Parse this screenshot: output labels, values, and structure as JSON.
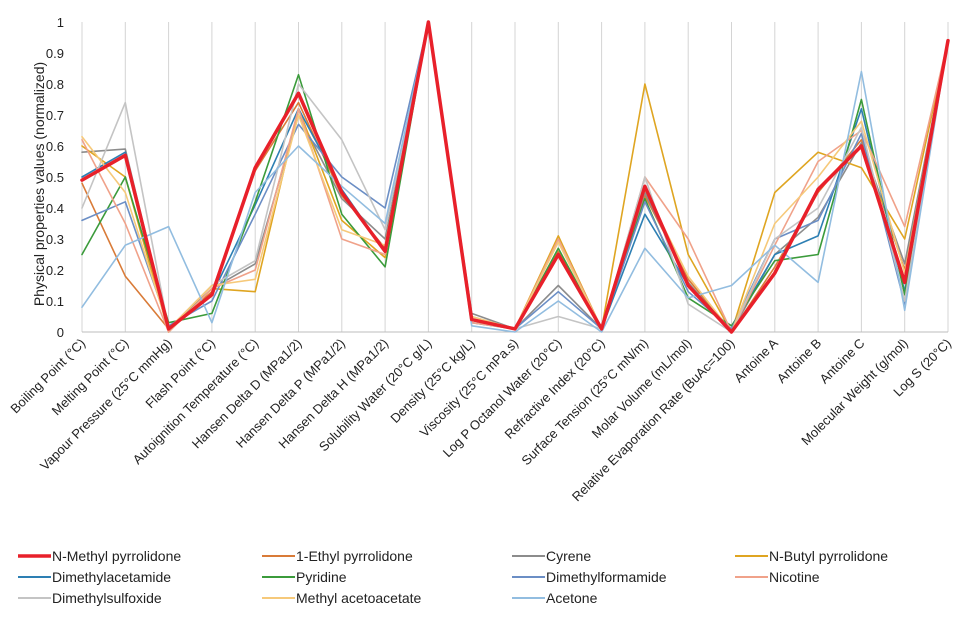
{
  "chart_data": {
    "type": "line",
    "title": "",
    "xlabel": "",
    "ylabel": "Physical properties values (normalized)",
    "ylim": [
      0,
      1
    ],
    "yticks": [
      "0",
      "0.1",
      "0.2",
      "0.3",
      "0.4",
      "0.5",
      "0.6",
      "0.7",
      "0.8",
      "0.9",
      "1"
    ],
    "grid": "vertical lines at each category",
    "legend_position": "bottom",
    "categories": [
      "Boiling Point (°C)",
      "Melting Point (°C)",
      "Vapour Pressure (25°C mmHg)",
      "Flash Point (°C)",
      "Autoignition Temperature (°C)",
      "Hansen Delta D (MPa1/2)",
      "Hansen Delta P (MPa1/2)",
      "Hansen Delta H (MPa1/2)",
      "Solubility Water (20°C g/L)",
      "Density (25°C kg/L)",
      "Viscosity (25°C mPa.s)",
      "Log P Octanol Water (20°C)",
      "Refractive Index (20°C)",
      "Surface Tension (25°C mN/m)",
      "Molar Volume (mL/mol)",
      "Relative Evaporation Rate (BuAc=100)",
      "Antoine A",
      "Antoine B",
      "Antoine C",
      "Molecular Weight (g/mol)",
      "Log S (20°C)"
    ],
    "series": [
      {
        "name": "N-Methyl pyrrolidone",
        "color": "#e8202a",
        "width": 3.5,
        "values": [
          0.49,
          0.57,
          0.01,
          0.12,
          0.53,
          0.77,
          0.45,
          0.26,
          1.0,
          0.04,
          0.01,
          0.25,
          0.01,
          0.47,
          0.15,
          0.0,
          0.19,
          0.46,
          0.6,
          0.16,
          0.94
        ]
      },
      {
        "name": "1-Ethyl pyrrolidone",
        "color": "#d97b38",
        "width": 1.6,
        "values": [
          0.48,
          0.18,
          0.01,
          0.13,
          0.52,
          0.74,
          0.44,
          0.27,
          1.0,
          0.04,
          0.01,
          0.26,
          0.01,
          0.44,
          0.17,
          0.0,
          0.21,
          0.45,
          0.62,
          0.2,
          0.94
        ]
      },
      {
        "name": "Cyrene",
        "color": "#8c8c8c",
        "width": 1.6,
        "values": [
          0.58,
          0.59,
          0.01,
          0.14,
          0.22,
          0.7,
          0.43,
          0.3,
          1.0,
          0.06,
          0.01,
          0.15,
          0.01,
          0.45,
          0.16,
          0.0,
          0.25,
          0.37,
          0.61,
          0.22,
          0.94
        ]
      },
      {
        "name": "N-Butyl pyrrolidone",
        "color": "#dfa521",
        "width": 1.6,
        "values": [
          0.6,
          0.5,
          0.0,
          0.14,
          0.13,
          0.72,
          0.36,
          0.24,
          1.0,
          0.04,
          0.01,
          0.31,
          0.01,
          0.8,
          0.25,
          0.0,
          0.45,
          0.58,
          0.53,
          0.3,
          0.94
        ]
      },
      {
        "name": "Dimethylacetamide",
        "color": "#2d7fb3",
        "width": 1.6,
        "values": [
          0.5,
          0.58,
          0.01,
          0.12,
          0.41,
          0.72,
          0.46,
          0.26,
          1.0,
          0.03,
          0.01,
          0.25,
          0.01,
          0.38,
          0.15,
          0.01,
          0.25,
          0.31,
          0.72,
          0.13,
          0.94
        ]
      },
      {
        "name": "Pyridine",
        "color": "#3b9b3b",
        "width": 1.6,
        "values": [
          0.25,
          0.5,
          0.03,
          0.06,
          0.42,
          0.83,
          0.38,
          0.21,
          1.0,
          0.04,
          0.01,
          0.27,
          0.01,
          0.43,
          0.11,
          0.02,
          0.23,
          0.25,
          0.75,
          0.12,
          0.94
        ]
      },
      {
        "name": "Dimethylformamide",
        "color": "#6b8ec5",
        "width": 1.6,
        "values": [
          0.36,
          0.42,
          0.02,
          0.1,
          0.38,
          0.67,
          0.5,
          0.4,
          1.0,
          0.04,
          0.01,
          0.13,
          0.01,
          0.42,
          0.13,
          0.01,
          0.3,
          0.36,
          0.64,
          0.09,
          0.94
        ]
      },
      {
        "name": "Nicotine",
        "color": "#f0a28a",
        "width": 1.6,
        "values": [
          0.62,
          0.35,
          0.0,
          0.14,
          0.2,
          0.72,
          0.3,
          0.25,
          1.0,
          0.03,
          0.01,
          0.3,
          0.01,
          0.5,
          0.3,
          0.0,
          0.28,
          0.55,
          0.65,
          0.34,
          0.94
        ]
      },
      {
        "name": "Dimethylsulfoxide",
        "color": "#c4c4c4",
        "width": 1.6,
        "values": [
          0.4,
          0.74,
          0.01,
          0.15,
          0.23,
          0.8,
          0.62,
          0.33,
          1.0,
          0.05,
          0.01,
          0.05,
          0.01,
          0.5,
          0.09,
          0.0,
          0.3,
          0.4,
          0.66,
          0.1,
          0.94
        ]
      },
      {
        "name": "Methyl acetoacetate",
        "color": "#f6c97a",
        "width": 1.6,
        "values": [
          0.63,
          0.45,
          0.01,
          0.15,
          0.17,
          0.7,
          0.33,
          0.28,
          1.0,
          0.05,
          0.01,
          0.29,
          0.01,
          0.46,
          0.18,
          0.0,
          0.35,
          0.5,
          0.68,
          0.19,
          0.94
        ]
      },
      {
        "name": "Acetone",
        "color": "#92bde0",
        "width": 1.6,
        "values": [
          0.08,
          0.28,
          0.34,
          0.03,
          0.45,
          0.6,
          0.47,
          0.35,
          1.0,
          0.02,
          0.0,
          0.1,
          0.0,
          0.27,
          0.11,
          0.15,
          0.28,
          0.16,
          0.84,
          0.07,
          0.94
        ]
      }
    ]
  }
}
